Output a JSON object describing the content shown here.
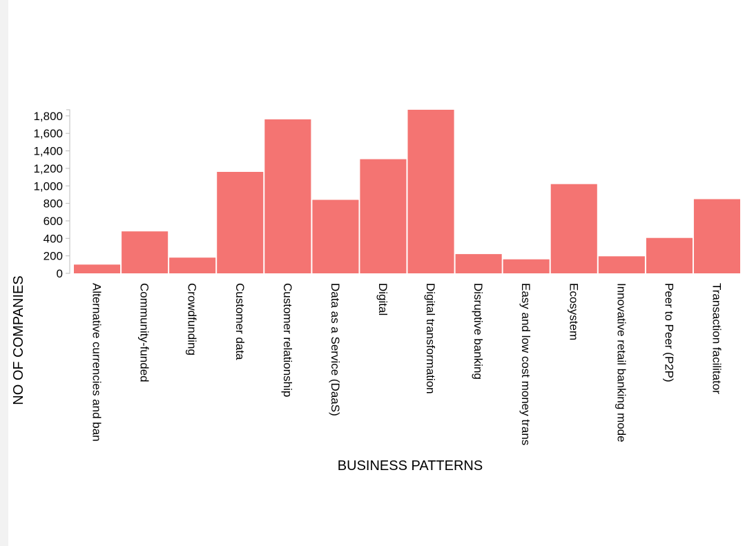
{
  "chart_data": {
    "type": "bar",
    "categories": [
      "Alternative currencies and ban",
      "Community-funded",
      "Crowdfunding",
      "Customer data",
      "Customer relationship",
      "Data as a Service (DaaS)",
      "Digital",
      "Digital transformation",
      "Disruptive banking",
      "Easy and low cost money trans",
      "Ecosystem",
      "Innovative retail banking mode",
      "Peer to Peer (P2P)",
      "Transaction facilitator"
    ],
    "values": [
      100,
      480,
      180,
      1160,
      1760,
      840,
      1305,
      1870,
      220,
      160,
      1020,
      195,
      405,
      848
    ],
    "xlabel": "BUSINESS PATTERNS",
    "ylabel": "NO OF COMPANIES",
    "yticks": [
      0,
      200,
      400,
      600,
      800,
      1000,
      1200,
      1400,
      1600,
      1800
    ],
    "ytick_labels": [
      "0",
      "200",
      "400",
      "600",
      "800",
      "1,000",
      "1,200",
      "1,400",
      "1,600",
      "1,800"
    ],
    "ylim": [
      0,
      1870
    ],
    "bar_color": "#f47472",
    "grid": false
  }
}
